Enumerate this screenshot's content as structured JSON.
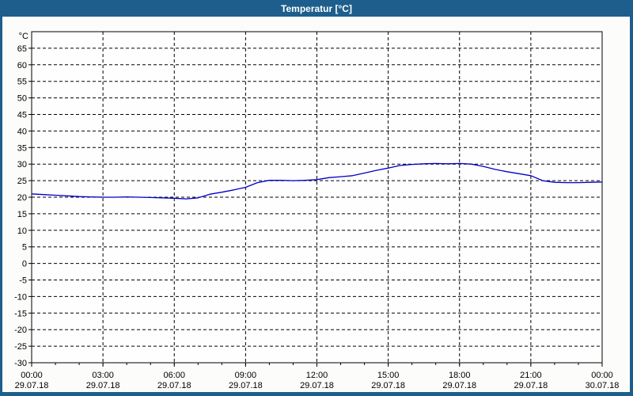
{
  "window": {
    "title": "Temperatur [°C]"
  },
  "colors": {
    "titlebar_bg": "#1d5e8c",
    "titlebar_text": "#ffffff",
    "window_border": "#1d5e8c",
    "content_bg": "#fcfcfa",
    "plot_bg": "#fefefe",
    "grid": "#000000",
    "axis": "#000000",
    "label_text": "#000000",
    "series_line": "#0000c8"
  },
  "chart_data": {
    "type": "line",
    "title": "Temperatur [°C]",
    "y_unit_label": "°C",
    "ylim": [
      -30,
      70
    ],
    "ytick_step": 5,
    "yticks": [
      65,
      60,
      55,
      50,
      45,
      40,
      35,
      30,
      25,
      20,
      15,
      10,
      5,
      0,
      -5,
      -10,
      -15,
      -20,
      -25,
      -30
    ],
    "grid": "dashed",
    "legend": "none",
    "xlim_hours": [
      0,
      24
    ],
    "x_minor_tick_every_hours": 1,
    "x_major_ticks": [
      {
        "hour": 0,
        "time": "00:00",
        "date": "29.07.18"
      },
      {
        "hour": 3,
        "time": "03:00",
        "date": "29.07.18"
      },
      {
        "hour": 6,
        "time": "06:00",
        "date": "29.07.18"
      },
      {
        "hour": 9,
        "time": "09:00",
        "date": "29.07.18"
      },
      {
        "hour": 12,
        "time": "12:00",
        "date": "29.07.18"
      },
      {
        "hour": 15,
        "time": "15:00",
        "date": "29.07.18"
      },
      {
        "hour": 18,
        "time": "18:00",
        "date": "29.07.18"
      },
      {
        "hour": 21,
        "time": "21:00",
        "date": "29.07.18"
      },
      {
        "hour": 24,
        "time": "00:00",
        "date": "30.07.18"
      }
    ],
    "x_hours": [
      0,
      0.5,
      1,
      1.5,
      2,
      2.5,
      3,
      3.5,
      4,
      4.5,
      5,
      5.5,
      6,
      6.5,
      7,
      7.5,
      8,
      8.5,
      9,
      9.5,
      10,
      10.5,
      11,
      11.5,
      12,
      12.5,
      13,
      13.5,
      14,
      14.5,
      15,
      15.5,
      16,
      16.5,
      17,
      17.5,
      18,
      18.5,
      19,
      19.5,
      20,
      20.5,
      21,
      21.5,
      22,
      22.5,
      23,
      23.5,
      24
    ],
    "series": [
      {
        "name": "Temperatur",
        "values": [
          21.0,
          20.8,
          20.6,
          20.4,
          20.2,
          20.1,
          20.0,
          20.0,
          20.1,
          20.0,
          19.9,
          19.8,
          19.7,
          19.5,
          19.8,
          20.9,
          21.5,
          22.2,
          23.0,
          24.4,
          25.1,
          25.1,
          25.0,
          25.1,
          25.3,
          25.9,
          26.2,
          26.5,
          27.3,
          28.1,
          28.8,
          29.6,
          29.9,
          30.1,
          30.2,
          30.1,
          30.2,
          30.0,
          29.3,
          28.4,
          27.7,
          27.1,
          26.5,
          25.0,
          24.5,
          24.4,
          24.4,
          24.5,
          24.6
        ]
      }
    ]
  }
}
